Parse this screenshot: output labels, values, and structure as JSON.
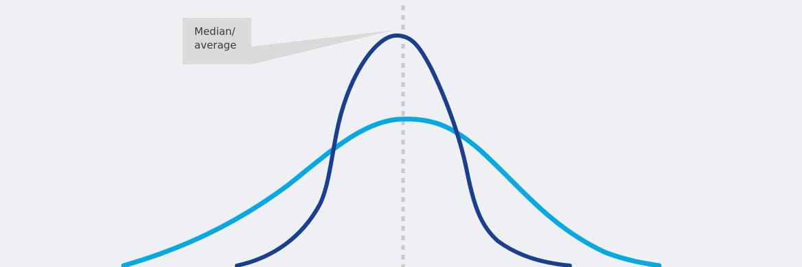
{
  "colors": {
    "background": "#eff0f3",
    "median_line": "#c9c9cb",
    "callout_fill": "#dadadc",
    "narrow_curve": "#1b3f8f",
    "wide_curve": "#07a9e3"
  },
  "callout": {
    "line1": "Median/",
    "line2": "average"
  },
  "curves": [
    {
      "id": "narrow",
      "shape": "narrow-peaked-distribution",
      "relative_peak": 1.0
    },
    {
      "id": "wide",
      "shape": "wide-flat-distribution",
      "relative_peak": 0.65
    }
  ]
}
